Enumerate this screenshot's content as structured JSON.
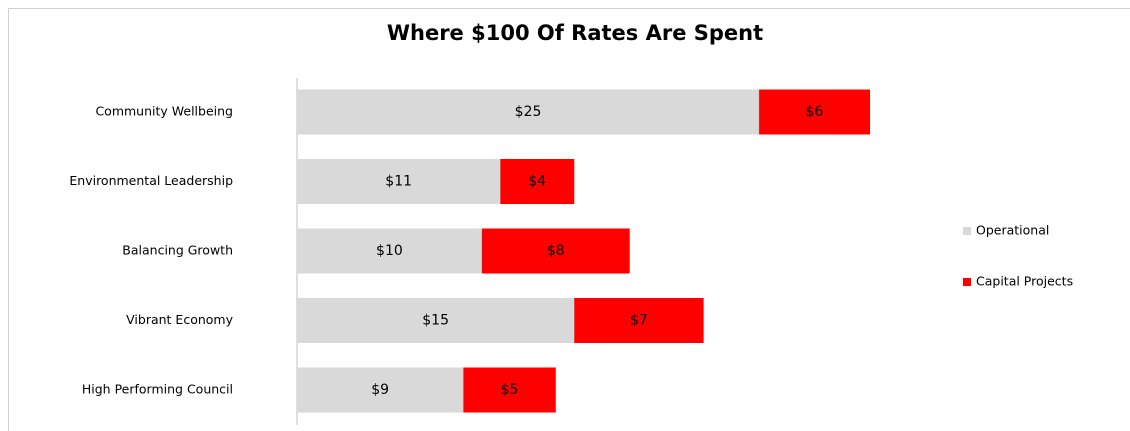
{
  "chart_data": {
    "type": "stacked-barh",
    "title": "Where $100 Of Rates Are Spent",
    "categories": [
      "Community Wellbeing",
      "Environmental Leadership",
      "Balancing Growth",
      "Vibrant Economy",
      "High Performing Council"
    ],
    "series": [
      {
        "name": "Operational",
        "color": "#d9d9d9",
        "values": [
          25,
          11,
          10,
          15,
          9
        ],
        "value_labels": [
          "$25",
          "$11",
          "$10",
          "$15",
          "$9"
        ]
      },
      {
        "name": "Capital Projects",
        "color": "#ff0000",
        "values": [
          6,
          4,
          8,
          7,
          5
        ],
        "value_labels": [
          "$6",
          "$4",
          "$8",
          "$7",
          "$5"
        ]
      }
    ],
    "legend": "right"
  }
}
